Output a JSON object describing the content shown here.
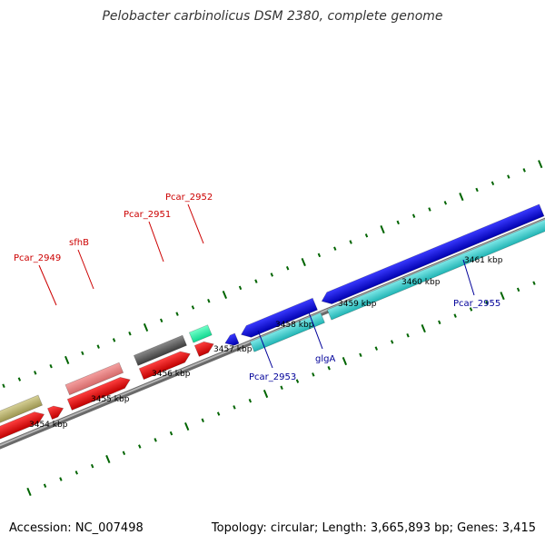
{
  "title": "Pelobacter carbinolicus DSM 2380, complete genome",
  "accession": "Accession: NC_007498",
  "summary": "Topology: circular; Length: 3,665,893 bp; Genes: 3,415",
  "colors": {
    "backbone": "#888888",
    "tick": "#006400",
    "forward_label": "#cc0000",
    "reverse_label": "#000099"
  },
  "tick_labels": [
    "3454 kbp",
    "3455 kbp",
    "3456 kbp",
    "3457 kbp",
    "3458 kbp",
    "3459 kbp",
    "3460 kbp",
    "3461 kbp"
  ],
  "gene_labels": [
    {
      "text": "Pcar_2949",
      "strand": "forward"
    },
    {
      "text": "sfhB",
      "strand": "forward"
    },
    {
      "text": "Pcar_2951",
      "strand": "forward"
    },
    {
      "text": "Pcar_2952",
      "strand": "forward"
    },
    {
      "text": "Pcar_2953",
      "strand": "reverse"
    },
    {
      "text": "glgA",
      "strand": "reverse"
    },
    {
      "text": "Pcar_2955",
      "strand": "reverse"
    }
  ]
}
